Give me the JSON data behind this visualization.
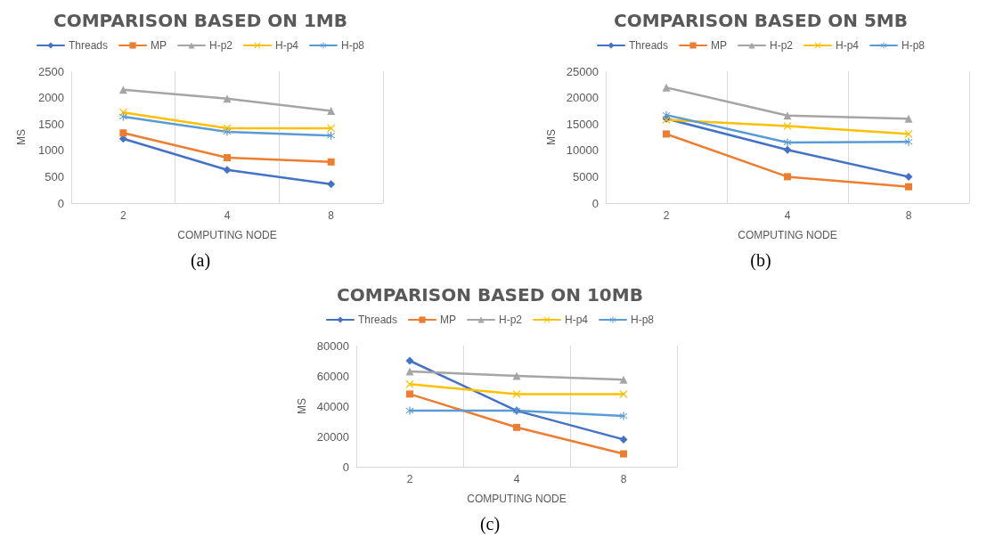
{
  "chart_data": [
    {
      "type": "line",
      "title": "COMPARISON BASED ON 1MB",
      "xlabel": "COMPUTING NODE",
      "ylabel": "MS",
      "categories": [
        "2",
        "4",
        "8"
      ],
      "series": [
        {
          "name": "Threads",
          "color": "#4472c4",
          "marker": "diamond",
          "values": [
            1220,
            630,
            360
          ]
        },
        {
          "name": "MP",
          "color": "#ed7d31",
          "marker": "square",
          "values": [
            1330,
            860,
            780
          ]
        },
        {
          "name": "H-p2",
          "color": "#a5a5a5",
          "marker": "triangle",
          "values": [
            2150,
            1980,
            1750
          ]
        },
        {
          "name": "H-p4",
          "color": "#ffc000",
          "marker": "cross",
          "values": [
            1720,
            1420,
            1420
          ]
        },
        {
          "name": "H-p8",
          "color": "#5b9bd5",
          "marker": "star",
          "values": [
            1640,
            1350,
            1280
          ]
        }
      ],
      "ylim": [
        0,
        2500
      ],
      "yticks": [
        0,
        500,
        1000,
        1500,
        2000,
        2500
      ],
      "grid": "x",
      "legend": "top",
      "annotations": [
        "(a)"
      ]
    },
    {
      "type": "line",
      "title": "COMPARISON BASED ON 5MB",
      "xlabel": "COMPUTING NODE",
      "ylabel": "MS",
      "categories": [
        "2",
        "4",
        "8"
      ],
      "series": [
        {
          "name": "Threads",
          "color": "#4472c4",
          "marker": "diamond",
          "values": [
            16000,
            10100,
            5000
          ]
        },
        {
          "name": "MP",
          "color": "#ed7d31",
          "marker": "square",
          "values": [
            13100,
            5000,
            3100
          ]
        },
        {
          "name": "H-p2",
          "color": "#a5a5a5",
          "marker": "triangle",
          "values": [
            21900,
            16600,
            16000
          ]
        },
        {
          "name": "H-p4",
          "color": "#ffc000",
          "marker": "cross",
          "values": [
            15800,
            14600,
            13100
          ]
        },
        {
          "name": "H-p8",
          "color": "#5b9bd5",
          "marker": "star",
          "values": [
            16700,
            11500,
            11600
          ]
        }
      ],
      "ylim": [
        0,
        25000
      ],
      "yticks": [
        0,
        5000,
        10000,
        15000,
        20000,
        25000
      ],
      "grid": "x",
      "legend": "top",
      "annotations": [
        "(b)"
      ]
    },
    {
      "type": "line",
      "title": "COMPARISON BASED ON 10MB",
      "xlabel": "COMPUTING NODE",
      "ylabel": "MS",
      "categories": [
        "2",
        "4",
        "8"
      ],
      "series": [
        {
          "name": "Threads",
          "color": "#4472c4",
          "marker": "diamond",
          "values": [
            70000,
            37000,
            18000
          ]
        },
        {
          "name": "MP",
          "color": "#ed7d31",
          "marker": "square",
          "values": [
            48000,
            26000,
            8500
          ]
        },
        {
          "name": "H-p2",
          "color": "#a5a5a5",
          "marker": "triangle",
          "values": [
            63000,
            60000,
            57500
          ]
        },
        {
          "name": "H-p4",
          "color": "#ffc000",
          "marker": "cross",
          "values": [
            54500,
            48000,
            48000
          ]
        },
        {
          "name": "H-p8",
          "color": "#5b9bd5",
          "marker": "star",
          "values": [
            37000,
            37000,
            33500
          ]
        }
      ],
      "ylim": [
        0,
        80000
      ],
      "yticks": [
        0,
        20000,
        40000,
        60000,
        80000
      ],
      "grid": "x",
      "legend": "top",
      "annotations": [
        "(c)"
      ]
    }
  ]
}
